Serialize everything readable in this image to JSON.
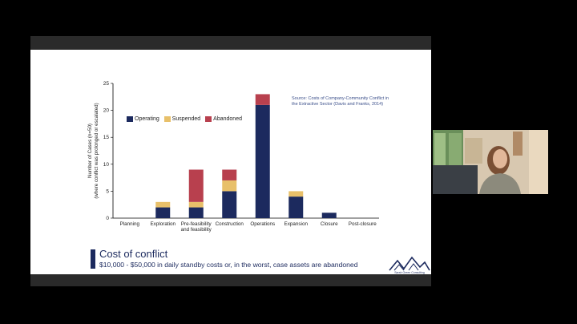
{
  "slide": {
    "source_line1": "Source: Costs of Company-Community Conflict in",
    "source_line2": "the Extractive Sector (Davis and Franks, 2014)",
    "conclusion_title": "Cost of conflict",
    "conclusion_body": "$10,000 - $50,000 in daily standby costs or, in the worst, case assets are abandoned",
    "logo_text": "Sarah Green Consulting"
  },
  "colors": {
    "operating": "#1c2a5e",
    "suspended": "#e8c06a",
    "abandoned": "#b8404e"
  },
  "chart_data": {
    "type": "bar",
    "stacked": true,
    "categories": [
      "Planning",
      "Exploration",
      "Pre-feasibility and feasibility",
      "Construction",
      "Operations",
      "Expansion",
      "Closure",
      "Post-closure"
    ],
    "category_lines": [
      [
        "Planning"
      ],
      [
        "Exploration"
      ],
      [
        "Pre-feasibility",
        "and feasibility"
      ],
      [
        "Construction"
      ],
      [
        "Operations"
      ],
      [
        "Expansion"
      ],
      [
        "Closure"
      ],
      [
        "Post-closure"
      ]
    ],
    "series": [
      {
        "name": "Operating",
        "values": [
          0,
          2,
          2,
          5,
          21,
          4,
          1,
          0
        ]
      },
      {
        "name": "Suspended",
        "values": [
          0,
          1,
          1,
          2,
          0,
          1,
          0,
          0
        ]
      },
      {
        "name": "Abandoned",
        "values": [
          0,
          0,
          6,
          2,
          2,
          0,
          0,
          0
        ]
      }
    ],
    "ylabel_line1": "Number of Cases  (n=50)",
    "ylabel_line2": "(where conflict was prolonged or escalated)",
    "ylim": [
      0,
      25
    ],
    "yticks": [
      0,
      5,
      10,
      15,
      20,
      25
    ],
    "legend_position": "top-left",
    "grid": false
  }
}
